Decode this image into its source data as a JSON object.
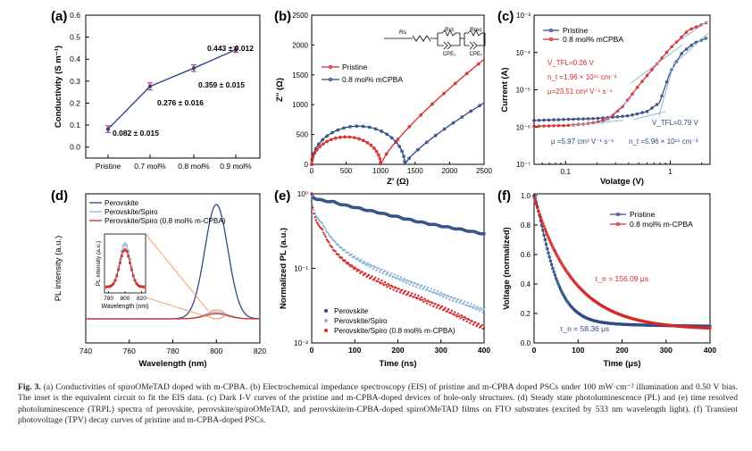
{
  "colors": {
    "blue": "#2f4b84",
    "red": "#d42a2a",
    "lightblue": "#8fb6d9",
    "orange": "#f08a4b",
    "fit": "#8fb6d9"
  },
  "chart_data": [
    {
      "panel": "(a)",
      "type": "line",
      "categories": [
        "Pristine",
        "0.7 mol%",
        "0.8 mol%",
        "0.9 mol%"
      ],
      "values": [
        0.082,
        0.276,
        0.359,
        0.443
      ],
      "errors": [
        0.015,
        0.016,
        0.015,
        0.012
      ],
      "labels": [
        "0.082 ± 0.015",
        "0.276 ± 0.016",
        "0.359 ± 0.015",
        "0.443 ± 0.012"
      ],
      "ylabel": "Conductivity  (S m⁻¹)",
      "ylim": [
        -0.05,
        0.6
      ],
      "yticks": [
        "0.0",
        "0.1",
        "0.2",
        "0.3",
        "0.4",
        "0.5",
        "0.6"
      ]
    },
    {
      "panel": "(b)",
      "type": "scatter",
      "xlabel": "Z' (Ω)",
      "ylabel": "Z'' (Ω)",
      "xlim": [
        0,
        2500
      ],
      "ylim": [
        0,
        2500
      ],
      "xticks": [
        "0",
        "500",
        "1000",
        "1500",
        "2000",
        "2500"
      ],
      "yticks": [
        "0",
        "500",
        "1000",
        "1500",
        "2000",
        "2500"
      ],
      "circuit": [
        "Rs",
        "Rct",
        "Rrec",
        "CPE₁",
        "CPE₂"
      ],
      "series": [
        {
          "name": "Pristine",
          "arc_start": 0,
          "arc_end": 1350,
          "arc_peak": 640,
          "tail_end": [
            2500,
            1030
          ]
        },
        {
          "name": "0.8 mol% mCPBA",
          "arc_start": 0,
          "arc_end": 1000,
          "arc_peak": 460,
          "tail_end": [
            2500,
            1760
          ]
        }
      ]
    },
    {
      "panel": "(c)",
      "type": "line",
      "scale": "log-log",
      "xlabel": "Volatge (V)",
      "ylabel": "Current (A)",
      "xlim": [
        0.05,
        2.4
      ],
      "ylim": [
        1e-07,
        0.001
      ],
      "xticks": [
        "0.1",
        "1"
      ],
      "yticks": [
        "10⁻⁷",
        "10⁻⁶",
        "10⁻⁵",
        "10⁻⁴",
        "10⁻³"
      ],
      "series": [
        {
          "name": "Pristine",
          "x": [
            0.05,
            0.1,
            0.2,
            0.4,
            0.6,
            0.79,
            1.0,
            1.3,
            1.7,
            2.2
          ],
          "y": [
            1.5e-06,
            1.6e-06,
            1.7e-06,
            2e-06,
            2.6e-06,
            4.5e-06,
            3e-05,
            0.0001,
            0.00018,
            0.00024
          ]
        },
        {
          "name": "0.8 mol% mCPBA",
          "x": [
            0.05,
            0.1,
            0.15,
            0.2,
            0.26,
            0.35,
            0.5,
            0.7,
            1.0,
            1.5,
            2.2
          ],
          "y": [
            1.05e-06,
            1.1e-06,
            1.2e-06,
            1.35e-06,
            1.7e-06,
            3.5e-06,
            1.3e-05,
            4e-05,
            0.00013,
            0.0004,
            0.00062
          ]
        }
      ],
      "annotations": {
        "red": [
          "V_TFL=0.26 V",
          "n_t =1.96 × 10¹⁵ cm⁻³",
          "μ=23.51 cm² V⁻¹ s⁻¹"
        ],
        "blue": [
          "V_TFL=0.79 V",
          "μ =5.97 cm² V⁻¹ s⁻¹",
          "n_t =5.96 × 10¹⁵ cm⁻³"
        ]
      }
    },
    {
      "panel": "(d)",
      "type": "line",
      "xlabel": "Wavelength (nm)",
      "ylabel": "PL intensity (a.u.)",
      "xlim": [
        740,
        820
      ],
      "xticks": [
        "740",
        "760",
        "780",
        "800",
        "820"
      ],
      "series": [
        {
          "name": "Perovskite",
          "peak_x": 800,
          "peak_height": 1.0,
          "width": 7.5
        },
        {
          "name": "Perovskite/Spiro",
          "peak_x": 800,
          "peak_height": 0.06,
          "width": 7.5
        },
        {
          "name": "Perovskite/Spiro (0.8 mol% m-CPBA)",
          "peak_x": 800,
          "peak_height": 0.045,
          "width": 7.5
        }
      ],
      "inset": {
        "xlabel": "Wavelength (nm)",
        "ylabel": "PL intensity (a.u.)",
        "xticks": [
          "780",
          "800",
          "820"
        ]
      }
    },
    {
      "panel": "(e)",
      "type": "scatter",
      "scale": "semilog-y",
      "xlabel": "Time (ns)",
      "ylabel": "Normalized PL (a.u.)",
      "xlim": [
        0,
        400
      ],
      "ylim": [
        0.01,
        1
      ],
      "xticks": [
        "0",
        "100",
        "200",
        "300",
        "400"
      ],
      "yticks": [
        "10⁻²",
        "10⁻¹",
        "10⁰"
      ],
      "series": [
        {
          "name": "Perovskite",
          "x": [
            0,
            50,
            100,
            150,
            200,
            250,
            300,
            350,
            400
          ],
          "y": [
            1.0,
            0.78,
            0.66,
            0.57,
            0.49,
            0.42,
            0.37,
            0.33,
            0.29
          ]
        },
        {
          "name": "Perovskite/Spiro",
          "x": [
            0,
            25,
            50,
            100,
            150,
            200,
            250,
            300,
            350,
            400
          ],
          "y": [
            1.0,
            0.4,
            0.24,
            0.14,
            0.1,
            0.075,
            0.058,
            0.045,
            0.035,
            0.027
          ]
        },
        {
          "name": "Perovskite/Spiro (0.8 mol% m-CPBA)",
          "x": [
            0,
            25,
            50,
            100,
            150,
            200,
            250,
            300,
            350,
            400
          ],
          "y": [
            1.0,
            0.33,
            0.18,
            0.1,
            0.07,
            0.052,
            0.04,
            0.03,
            0.022,
            0.016
          ]
        }
      ]
    },
    {
      "panel": "(f)",
      "type": "line",
      "xlabel": "Time (μs)",
      "ylabel": "Voltage (normalized)",
      "xlim": [
        0,
        400
      ],
      "ylim": [
        0,
        1
      ],
      "xticks": [
        "0",
        "100",
        "200",
        "300",
        "400"
      ],
      "yticks": [
        "0.0",
        "0.2",
        "0.4",
        "0.6",
        "0.8",
        "1.0"
      ],
      "series": [
        {
          "name": "Pristine",
          "tau_us": 58.36,
          "baseline": 0.11
        },
        {
          "name": "0.8 mol% m-CPBA",
          "tau_us": 156.09,
          "baseline": 0.09
        }
      ],
      "annotations": {
        "red": "τ_n = 156.09 μs",
        "blue": "τ_n = 58.36 μs"
      }
    }
  ],
  "caption": {
    "label": "Fig. 3.",
    "text": "(a) Conductivities of spiroOMeTAD doped with m-CPBA. (b) Electrochemical impedance spectroscopy (EIS) of pristine and m-CPBA doped PSCs under 100 mW·cm⁻² illumination and 0.50 V bias. The inset is the equivalent circuit to fit the EIS data. (c) Dark I-V curves of the pristine and m-CPBA-doped devices of hole-only structures. (d) Steady state photoluminescence (PL) and (e) time resolved photoluminescence (TRPL) spectra of perovskite, perovskite/spiroOMeTAD, and perovskite/m-CPBA-doped spiroOMeTAD films on FTO substrates (excited by 533 nm wavelength light). (f) Transient photovoltage (TPV) decay curves of pristine and m-CPBA-doped PSCs."
  }
}
